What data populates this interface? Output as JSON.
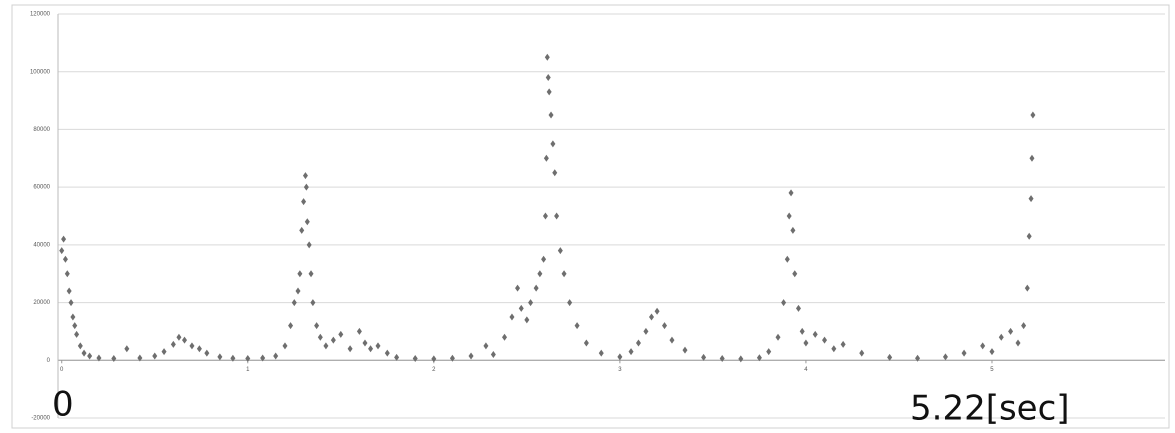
{
  "chart_data": {
    "type": "scatter",
    "color": "#6e6e6e",
    "grid": true,
    "xlim": [
      -0.02,
      5.93
    ],
    "xticks": [
      0,
      1,
      2,
      3,
      4,
      5
    ],
    "ylim": [
      -20000,
      120000
    ],
    "yticks": [
      -20000,
      0,
      20000,
      40000,
      60000,
      80000,
      100000,
      120000
    ],
    "annotations": [
      "0",
      "5.22[sec]"
    ],
    "x": [
      0,
      0.01,
      0.02,
      0.03,
      0.04,
      0.05,
      0.06,
      0.07,
      0.08,
      0.1,
      0.12,
      0.15,
      0.2,
      0.28,
      0.35,
      0.42,
      0.5,
      0.55,
      0.6,
      0.63,
      0.66,
      0.7,
      0.74,
      0.78,
      0.85,
      0.92,
      1.0,
      1.08,
      1.15,
      1.2,
      1.23,
      1.25,
      1.27,
      1.28,
      1.29,
      1.3,
      1.31,
      1.315,
      1.32,
      1.33,
      1.34,
      1.35,
      1.37,
      1.39,
      1.42,
      1.46,
      1.5,
      1.55,
      1.6,
      1.63,
      1.66,
      1.7,
      1.75,
      1.8,
      1.9,
      2.0,
      2.1,
      2.2,
      2.28,
      2.32,
      2.38,
      2.42,
      2.45,
      2.47,
      2.5,
      2.52,
      2.55,
      2.57,
      2.59,
      2.6,
      2.605,
      2.61,
      2.615,
      2.62,
      2.63,
      2.64,
      2.65,
      2.66,
      2.68,
      2.7,
      2.73,
      2.77,
      2.82,
      2.9,
      3.0,
      3.06,
      3.1,
      3.14,
      3.17,
      3.2,
      3.24,
      3.28,
      3.35,
      3.45,
      3.55,
      3.65,
      3.75,
      3.8,
      3.85,
      3.88,
      3.9,
      3.91,
      3.92,
      3.93,
      3.94,
      3.96,
      3.98,
      4.0,
      4.05,
      4.1,
      4.15,
      4.2,
      4.3,
      4.45,
      4.6,
      4.75,
      4.85,
      4.95,
      5.0,
      5.05,
      5.1,
      5.14,
      5.17,
      5.19,
      5.2,
      5.21,
      5.215,
      5.22
    ],
    "values": [
      38000,
      42000,
      35000,
      30000,
      24000,
      20000,
      15000,
      12000,
      9000,
      5000,
      2500,
      1500,
      800,
      600,
      4000,
      800,
      1500,
      3000,
      5500,
      8000,
      7000,
      5000,
      4000,
      2500,
      1200,
      700,
      600,
      800,
      1500,
      5000,
      12000,
      20000,
      24000,
      30000,
      45000,
      55000,
      64000,
      60000,
      48000,
      40000,
      30000,
      20000,
      12000,
      8000,
      5000,
      7000,
      9000,
      4000,
      10000,
      6000,
      4000,
      5000,
      2500,
      1000,
      600,
      500,
      700,
      1500,
      5000,
      2000,
      8000,
      15000,
      25000,
      18000,
      14000,
      20000,
      25000,
      30000,
      35000,
      50000,
      70000,
      105000,
      98000,
      93000,
      85000,
      75000,
      65000,
      50000,
      38000,
      30000,
      20000,
      12000,
      6000,
      2500,
      1200,
      3000,
      6000,
      10000,
      15000,
      17000,
      12000,
      7000,
      3500,
      1000,
      600,
      500,
      900,
      3000,
      8000,
      20000,
      35000,
      50000,
      58000,
      45000,
      30000,
      18000,
      10000,
      6000,
      9000,
      7000,
      4000,
      5500,
      2500,
      1000,
      700,
      1200,
      2500,
      5000,
      3000,
      8000,
      10000,
      6000,
      12000,
      25000,
      43000,
      56000,
      70000,
      85000
    ]
  }
}
